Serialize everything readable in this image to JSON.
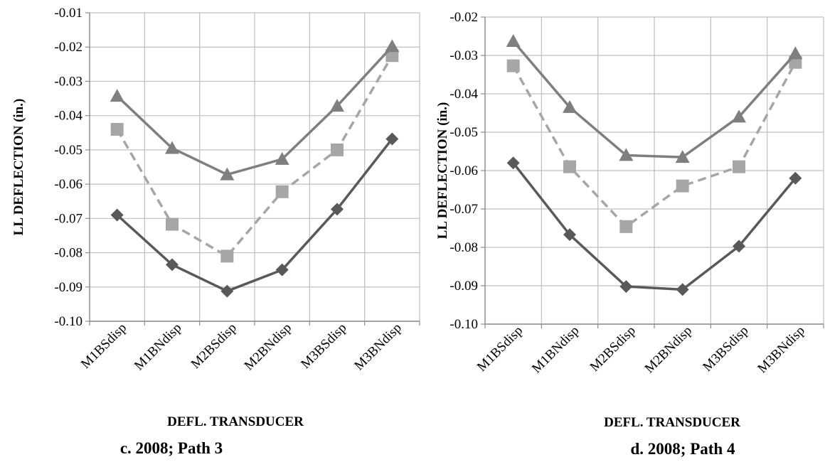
{
  "chart_data": [
    {
      "type": "line",
      "caption": "c. 2008; Path 3",
      "xlabel": "DEFL. TRANSDUCER",
      "ylabel": "LL DEFLECTION (in.)",
      "categories": [
        "M1BSdisp",
        "M1BNdisp",
        "M2BSdisp",
        "M2BNdisp",
        "M3BSdisp",
        "M3BNdisp"
      ],
      "ylim": [
        -0.1,
        -0.01
      ],
      "yticks": [
        "-0.01",
        "-0.02",
        "-0.03",
        "-0.04",
        "-0.05",
        "-0.06",
        "-0.07",
        "-0.08",
        "-0.09",
        "-0.10"
      ],
      "grid": true,
      "series": [
        {
          "marker": "diamond",
          "style": "solid",
          "color": "#595959",
          "values": [
            -0.069,
            -0.0835,
            -0.0912,
            -0.085,
            -0.0673,
            -0.0468
          ]
        },
        {
          "marker": "square",
          "style": "dashed",
          "color": "#a6a6a6",
          "values": [
            -0.044,
            -0.0717,
            -0.081,
            -0.0622,
            -0.05,
            -0.0225
          ]
        },
        {
          "marker": "triangle",
          "style": "solid",
          "color": "#7f7f7f",
          "values": [
            -0.0343,
            -0.0495,
            -0.0572,
            -0.0527,
            -0.0372,
            -0.0198
          ]
        }
      ]
    },
    {
      "type": "line",
      "caption": "d. 2008; Path 4",
      "xlabel": "DEFL. TRANSDUCER",
      "ylabel": "LL DEFLECTION (in.)",
      "categories": [
        "M1BSdisp",
        "M1BNdisp",
        "M2BSdisp",
        "M2BNdisp",
        "M3BSdisp",
        "M3BNdisp"
      ],
      "ylim": [
        -0.1,
        -0.02
      ],
      "yticks": [
        "-0.02",
        "-0.03",
        "-0.04",
        "-0.05",
        "-0.06",
        "-0.07",
        "-0.08",
        "-0.09",
        "-0.10"
      ],
      "grid": true,
      "series": [
        {
          "marker": "diamond",
          "style": "solid",
          "color": "#595959",
          "values": [
            -0.058,
            -0.0767,
            -0.0902,
            -0.091,
            -0.0797,
            -0.062
          ]
        },
        {
          "marker": "square",
          "style": "dashed",
          "color": "#a6a6a6",
          "values": [
            -0.0327,
            -0.059,
            -0.0746,
            -0.064,
            -0.059,
            -0.0318
          ]
        },
        {
          "marker": "triangle",
          "style": "solid",
          "color": "#7f7f7f",
          "values": [
            -0.0263,
            -0.0435,
            -0.056,
            -0.0565,
            -0.046,
            -0.0295
          ]
        }
      ]
    }
  ]
}
